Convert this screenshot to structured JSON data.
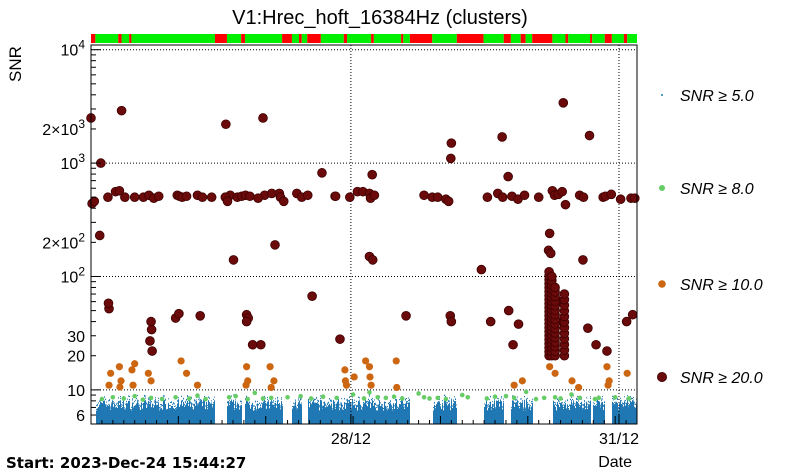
{
  "chart_data": {
    "type": "scatter",
    "title": "V1:Hrec_hoft_16384Hz (clusters)",
    "ylabel": "SNR",
    "xlabel": "Date",
    "start_label": "Start: 2023-Dec-24 15:44:27",
    "yscale": "log",
    "ylim": [
      5,
      11000
    ],
    "xlim": [
      0,
      100
    ],
    "y_ticks": [
      {
        "value": 6,
        "label": "6"
      },
      {
        "value": 10,
        "label": "10"
      },
      {
        "value": 20,
        "label": "20"
      },
      {
        "value": 30,
        "label": "30"
      },
      {
        "value": 100,
        "label": "10",
        "exp": "2"
      },
      {
        "value": 200,
        "label": "2×10",
        "exp": "2"
      },
      {
        "value": 1000,
        "label": "10",
        "exp": "3"
      },
      {
        "value": 2000,
        "label": "2×10",
        "exp": "3"
      },
      {
        "value": 10000,
        "label": "10",
        "exp": "4"
      }
    ],
    "x_ticks": [
      {
        "value": 47.6,
        "label": "28/12"
      },
      {
        "value": 96.7,
        "label": "31/12"
      }
    ],
    "grid": true,
    "legend": {
      "placement": "right",
      "entries": [
        {
          "label": "SNR ≥ 5.0",
          "color": "#1f78b4"
        },
        {
          "label": "SNR ≥ 8.0",
          "color": "#66cc66"
        },
        {
          "label": "SNR ≥ 10.0",
          "color": "#cc6611"
        },
        {
          "label": "SNR ≥ 20.0",
          "color": "#6b0a0a"
        }
      ]
    },
    "segments": [
      {
        "x0": 0,
        "x1": 0.8,
        "state": "off"
      },
      {
        "x0": 0.8,
        "x1": 5,
        "state": "on"
      },
      {
        "x0": 5,
        "x1": 5.6,
        "state": "off"
      },
      {
        "x0": 5.6,
        "x1": 7,
        "state": "on"
      },
      {
        "x0": 7,
        "x1": 7.4,
        "state": "off"
      },
      {
        "x0": 7.4,
        "x1": 22.7,
        "state": "on"
      },
      {
        "x0": 22.7,
        "x1": 24.9,
        "state": "off"
      },
      {
        "x0": 24.9,
        "x1": 27.5,
        "state": "on"
      },
      {
        "x0": 27.5,
        "x1": 28.2,
        "state": "off"
      },
      {
        "x0": 28.2,
        "x1": 35,
        "state": "on"
      },
      {
        "x0": 35,
        "x1": 36.8,
        "state": "off"
      },
      {
        "x0": 36.8,
        "x1": 38.1,
        "state": "on"
      },
      {
        "x0": 38.1,
        "x1": 38.6,
        "state": "off"
      },
      {
        "x0": 38.6,
        "x1": 39.6,
        "state": "on"
      },
      {
        "x0": 39.6,
        "x1": 42.1,
        "state": "off"
      },
      {
        "x0": 42.1,
        "x1": 46.3,
        "state": "on"
      },
      {
        "x0": 46.3,
        "x1": 46.9,
        "state": "off"
      },
      {
        "x0": 46.9,
        "x1": 51.3,
        "state": "on"
      },
      {
        "x0": 51.3,
        "x1": 51.8,
        "state": "off"
      },
      {
        "x0": 51.8,
        "x1": 56.8,
        "state": "on"
      },
      {
        "x0": 56.8,
        "x1": 57.2,
        "state": "off"
      },
      {
        "x0": 57.2,
        "x1": 58.4,
        "state": "on"
      },
      {
        "x0": 58.4,
        "x1": 62.5,
        "state": "off"
      },
      {
        "x0": 62.5,
        "x1": 67,
        "state": "on"
      },
      {
        "x0": 67,
        "x1": 71.9,
        "state": "off"
      },
      {
        "x0": 71.9,
        "x1": 75.6,
        "state": "on"
      },
      {
        "x0": 75.6,
        "x1": 76.9,
        "state": "off"
      },
      {
        "x0": 76.9,
        "x1": 78.7,
        "state": "on"
      },
      {
        "x0": 78.7,
        "x1": 79.6,
        "state": "off"
      },
      {
        "x0": 79.6,
        "x1": 80.8,
        "state": "on"
      },
      {
        "x0": 80.8,
        "x1": 84.5,
        "state": "off"
      },
      {
        "x0": 84.5,
        "x1": 86.9,
        "state": "on"
      },
      {
        "x0": 86.9,
        "x1": 87.4,
        "state": "off"
      },
      {
        "x0": 87.4,
        "x1": 91.4,
        "state": "on"
      },
      {
        "x0": 91.4,
        "x1": 91.8,
        "state": "off"
      },
      {
        "x0": 91.8,
        "x1": 94.1,
        "state": "on"
      },
      {
        "x0": 94.1,
        "x1": 95.4,
        "state": "off"
      },
      {
        "x0": 95.4,
        "x1": 97.6,
        "state": "on"
      },
      {
        "x0": 97.6,
        "x1": 98.2,
        "state": "off"
      },
      {
        "x0": 98.2,
        "x1": 100,
        "state": "on"
      }
    ],
    "segment_colors": {
      "on": "#00ee00",
      "off": "#ff0000"
    },
    "background_band": {
      "color": "#1f78b4",
      "snr_min": 5,
      "snr_max": 8.2,
      "gaps": [
        [
          0,
          0.8
        ],
        [
          22.7,
          24.9
        ],
        [
          27.5,
          28.2
        ],
        [
          35,
          36.8
        ],
        [
          38.6,
          39.6
        ],
        [
          58.4,
          62.5
        ],
        [
          67,
          71.9
        ],
        [
          75.6,
          76.9
        ],
        [
          80.8,
          84.5
        ],
        [
          91.4,
          91.8
        ],
        [
          94.1,
          95.4
        ]
      ]
    },
    "series": [
      {
        "name": "SNR ≥ 8.0",
        "color": "#66cc66",
        "points": [
          [
            2,
            8.3
          ],
          [
            4,
            8.6
          ],
          [
            6,
            8.4
          ],
          [
            8,
            8.8
          ],
          [
            9.5,
            8.2
          ],
          [
            11,
            8.5
          ],
          [
            13,
            8.3
          ],
          [
            15.5,
            8.6
          ],
          [
            18,
            8.4
          ],
          [
            19.5,
            8.9
          ],
          [
            21,
            8.3
          ],
          [
            25.3,
            8.6
          ],
          [
            26.5,
            8.8
          ],
          [
            28.7,
            8.3
          ],
          [
            30,
            9.4
          ],
          [
            31.5,
            8.4
          ],
          [
            33,
            8.5
          ],
          [
            36,
            8.6
          ],
          [
            38.4,
            8.8
          ],
          [
            40.3,
            8.4
          ],
          [
            42.5,
            8.7
          ],
          [
            45,
            8.5
          ],
          [
            48,
            9.1
          ],
          [
            50,
            8.4
          ],
          [
            51,
            9.5
          ],
          [
            52.5,
            8.6
          ],
          [
            54,
            8.5
          ],
          [
            55.5,
            8.7
          ],
          [
            57,
            8.4
          ],
          [
            60,
            9.3
          ],
          [
            61,
            8.6
          ],
          [
            62,
            8.4
          ],
          [
            63.5,
            8.5
          ],
          [
            65,
            8.3
          ],
          [
            68,
            9
          ],
          [
            69,
            8.6
          ],
          [
            72.5,
            8.4
          ],
          [
            74,
            8.7
          ],
          [
            76,
            8.8
          ],
          [
            77.5,
            8.5
          ],
          [
            79.7,
            9.6
          ],
          [
            81.5,
            8.3
          ],
          [
            83,
            8.5
          ],
          [
            85,
            8.6
          ],
          [
            86,
            8.4
          ],
          [
            88,
            9.1
          ],
          [
            89.5,
            8.5
          ],
          [
            92.3,
            8.3
          ],
          [
            93,
            8.5
          ],
          [
            96,
            8.6
          ],
          [
            98.5,
            8.4
          ]
        ]
      },
      {
        "name": "SNR ≥ 10.0",
        "color": "#cc6611",
        "points": [
          [
            3.3,
            11
          ],
          [
            3.6,
            14
          ],
          [
            5.2,
            16
          ],
          [
            5.5,
            12
          ],
          [
            5.3,
            10.6
          ],
          [
            7.5,
            15
          ],
          [
            8,
            17
          ],
          [
            7.7,
            11
          ],
          [
            10.5,
            14
          ],
          [
            11,
            12
          ],
          [
            16.5,
            18
          ],
          [
            17.5,
            14
          ],
          [
            19.5,
            11
          ],
          [
            28.5,
            16
          ],
          [
            28.7,
            12
          ],
          [
            28.4,
            11
          ],
          [
            32.8,
            16
          ],
          [
            33.5,
            12
          ],
          [
            33,
            10.5
          ],
          [
            46.5,
            15
          ],
          [
            46.8,
            11
          ],
          [
            46.6,
            12
          ],
          [
            48.2,
            13
          ],
          [
            50.3,
            18
          ],
          [
            51,
            16
          ],
          [
            51.1,
            13
          ],
          [
            51.3,
            11
          ],
          [
            55.9,
            18
          ],
          [
            56,
            10.5
          ],
          [
            77.5,
            11
          ],
          [
            79,
            12
          ],
          [
            84,
            16
          ],
          [
            85,
            14
          ],
          [
            88.1,
            12
          ],
          [
            89.3,
            10.5
          ],
          [
            94.5,
            16
          ],
          [
            94.7,
            11
          ],
          [
            94.9,
            12
          ],
          [
            98.2,
            14
          ]
        ]
      },
      {
        "name": "SNR ≥ 20.0",
        "color": "#6b0a0a",
        "points": [
          [
            0,
            2500
          ],
          [
            1.8,
            1000
          ],
          [
            1.6,
            230
          ],
          [
            0.2,
            440
          ],
          [
            0.6,
            460
          ],
          [
            3.3,
            52
          ],
          [
            3.2,
            58
          ],
          [
            3.1,
            500
          ],
          [
            4.5,
            560
          ],
          [
            5.2,
            570
          ],
          [
            5.6,
            2900
          ],
          [
            6.2,
            500
          ],
          [
            8,
            500
          ],
          [
            9.6,
            500
          ],
          [
            10.6,
            520
          ],
          [
            11.5,
            490
          ],
          [
            12.4,
            510
          ],
          [
            11,
            40
          ],
          [
            11.1,
            34
          ],
          [
            10.8,
            27
          ],
          [
            11.2,
            22
          ],
          [
            15.8,
            520
          ],
          [
            16.2,
            510
          ],
          [
            16.7,
            500
          ],
          [
            17.5,
            510
          ],
          [
            15.5,
            43
          ],
          [
            16.1,
            47
          ],
          [
            19.5,
            520
          ],
          [
            20.4,
            500
          ],
          [
            20,
            45
          ],
          [
            22.1,
            500
          ],
          [
            24.7,
            2200
          ],
          [
            25.5,
            520
          ],
          [
            24.6,
            500
          ],
          [
            25,
            460
          ],
          [
            26.1,
            140
          ],
          [
            26.8,
            500
          ],
          [
            27.6,
            510
          ],
          [
            28.3,
            520
          ],
          [
            29.1,
            510
          ],
          [
            28.5,
            46
          ],
          [
            28.8,
            43
          ],
          [
            28.5,
            40
          ],
          [
            29.6,
            25
          ],
          [
            31.5,
            2500
          ],
          [
            31.8,
            520
          ],
          [
            31.1,
            25
          ],
          [
            30.6,
            490
          ],
          [
            33.1,
            540
          ],
          [
            33.7,
            190
          ],
          [
            34.5,
            540
          ],
          [
            34.7,
            500
          ],
          [
            35.3,
            460
          ],
          [
            37.7,
            540
          ],
          [
            38.6,
            500
          ],
          [
            39.7,
            520
          ],
          [
            40.5,
            67
          ],
          [
            42.3,
            820
          ],
          [
            44.7,
            510
          ],
          [
            44.8,
            510
          ],
          [
            45.6,
            28
          ],
          [
            47.4,
            500
          ],
          [
            48.8,
            560
          ],
          [
            49.8,
            560
          ],
          [
            51,
            540
          ],
          [
            51.2,
            490
          ],
          [
            51.5,
            790
          ],
          [
            51,
            150
          ],
          [
            51.6,
            140
          ],
          [
            51.9,
            520
          ],
          [
            57.7,
            45
          ],
          [
            61,
            520
          ],
          [
            62.5,
            500
          ],
          [
            63.5,
            500
          ],
          [
            65,
            480
          ],
          [
            65.5,
            460
          ],
          [
            65.9,
            1100
          ],
          [
            66,
            1500
          ],
          [
            65.8,
            45
          ],
          [
            66,
            40
          ],
          [
            71.5,
            115
          ],
          [
            72.6,
            500
          ],
          [
            73.2,
            40
          ],
          [
            74.5,
            540
          ],
          [
            75.3,
            1700
          ],
          [
            75.4,
            500
          ],
          [
            76.4,
            760
          ],
          [
            76.5,
            50
          ],
          [
            77.1,
            510
          ],
          [
            78.2,
            480
          ],
          [
            77.3,
            25
          ],
          [
            78.3,
            38
          ],
          [
            79.4,
            520
          ],
          [
            82,
            500
          ],
          [
            84.5,
            570
          ],
          [
            83.8,
            170
          ],
          [
            84.2,
            160
          ],
          [
            84,
            240
          ],
          [
            84.9,
            520
          ],
          [
            85.6,
            530
          ],
          [
            86.5,
            3400
          ],
          [
            86.3,
            560
          ],
          [
            86.9,
            430
          ],
          [
            89.5,
            520
          ],
          [
            90.2,
            500
          ],
          [
            90.1,
            140
          ],
          [
            91.3,
            1750
          ],
          [
            91,
            35
          ],
          [
            92.5,
            25
          ],
          [
            93.8,
            500
          ],
          [
            94.2,
            510
          ],
          [
            95.3,
            530
          ],
          [
            94.5,
            22
          ],
          [
            97,
            480
          ],
          [
            98.1,
            40
          ],
          [
            98.9,
            490
          ],
          [
            99.6,
            490
          ],
          [
            99.2,
            46
          ],
          [
            86.4,
            40
          ],
          [
            85.8,
            60
          ]
        ]
      }
    ],
    "stacks": [
      {
        "x": 83.9,
        "ymin": 20,
        "ymax": 110,
        "count": 22
      },
      {
        "x": 84.4,
        "ymin": 20,
        "ymax": 100,
        "count": 20
      },
      {
        "x": 85.0,
        "ymin": 20,
        "ymax": 80,
        "count": 16
      },
      {
        "x": 86.7,
        "ymin": 20,
        "ymax": 70,
        "count": 12
      }
    ]
  }
}
